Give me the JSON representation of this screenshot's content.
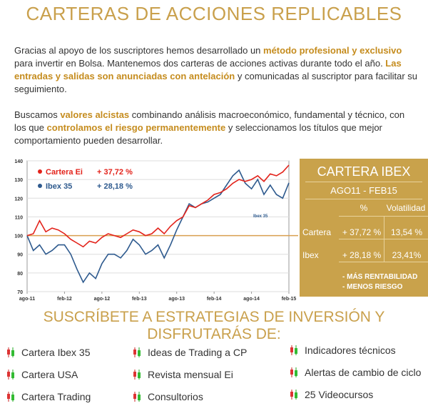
{
  "header": {
    "title": "CARTERAS DE ACCIONES REPLICABLES"
  },
  "paragraphs": [
    [
      {
        "text": "Gracias al apoyo de los suscriptores hemos desarrollado un "
      },
      {
        "text": "método profesional y exclusivo",
        "highlight": true
      },
      {
        "text": " para invertir en Bolsa. Mantenemos dos carteras de acciones activas durante todo el año. "
      },
      {
        "text": "Las entradas y salidas son anunciadas con antelación",
        "highlight": true
      },
      {
        "text": " y comunicadas al suscriptor para facilitar su seguimiento."
      }
    ],
    [
      {
        "text": "Buscamos "
      },
      {
        "text": "valores alcistas",
        "highlight": true
      },
      {
        "text": " combinando análisis macroeconómico, fundamental y técnico, con los que "
      },
      {
        "text": "controlamos el riesgo permanentemente",
        "highlight": true
      },
      {
        "text": " y seleccionamos los títulos que mejor comportamiento pueden desarrollar."
      }
    ]
  ],
  "chart_data": {
    "type": "line",
    "categories": [
      "ago-11",
      null,
      null,
      null,
      null,
      null,
      "feb-12",
      null,
      null,
      null,
      null,
      null,
      "ago-12",
      null,
      null,
      null,
      null,
      null,
      "feb-13",
      null,
      null,
      null,
      null,
      null,
      "ago-13",
      null,
      null,
      null,
      null,
      null,
      "feb-14",
      null,
      null,
      null,
      null,
      null,
      "ago-14",
      null,
      null,
      null,
      null,
      null,
      "feb-15"
    ],
    "series": [
      {
        "name": "Cartera Ei",
        "legend_value": "+ 37,72 %",
        "color": "#e3231b",
        "values": [
          100,
          101,
          108,
          102,
          104,
          103,
          101,
          98,
          96,
          94,
          97,
          96,
          99,
          101,
          100,
          99,
          101,
          103,
          102,
          100,
          101,
          104,
          101,
          105,
          108,
          110,
          116,
          115,
          117,
          119,
          122,
          123,
          125,
          128,
          130,
          129,
          130,
          132,
          129,
          133,
          132,
          134,
          137.7
        ]
      },
      {
        "name": "Ibex 35",
        "legend_value": "+ 28,18 %",
        "color": "#2e5a8e",
        "values": [
          100,
          92,
          95,
          90,
          92,
          95,
          95,
          90,
          82,
          75,
          80,
          77,
          85,
          90,
          90,
          88,
          92,
          98,
          95,
          90,
          92,
          95,
          88,
          95,
          103,
          110,
          117,
          115,
          117,
          118,
          120,
          122,
          127,
          132,
          135,
          128,
          125,
          130,
          122,
          127,
          122,
          120,
          128.2
        ]
      }
    ],
    "annotation": "Ibex 35",
    "reference_line": 100,
    "reference_color": "#d9a050",
    "ylim": [
      70,
      140
    ],
    "yticks": [
      70,
      80,
      90,
      100,
      110,
      120,
      130,
      140
    ],
    "grid": true
  },
  "summary": {
    "title": "CARTERA IBEX",
    "period": "AGO11 - FEB15",
    "columns": [
      "%",
      "Volatilidad"
    ],
    "rows": [
      [
        "Cartera",
        "+ 37,72 %",
        "13,54 %"
      ],
      [
        "Ibex",
        "+ 28,18 %",
        "23,41%"
      ]
    ],
    "notes": [
      "- MÁS RENTABILIDAD",
      "- MENOS RIESGO"
    ]
  },
  "subscribe": {
    "title": "SUSCRÍBETE A ESTRATEGIAS DE INVERSIÓN Y DISFRUTARÁS DE:",
    "items": [
      "Cartera Ibex 35",
      "Cartera USA",
      "Cartera Trading",
      "Ideas de Trading a CP",
      "Revista mensual Ei",
      "Consultorios",
      "Indicadores técnicos",
      "Alertas de cambio de ciclo",
      "25 Videocursos"
    ]
  }
}
